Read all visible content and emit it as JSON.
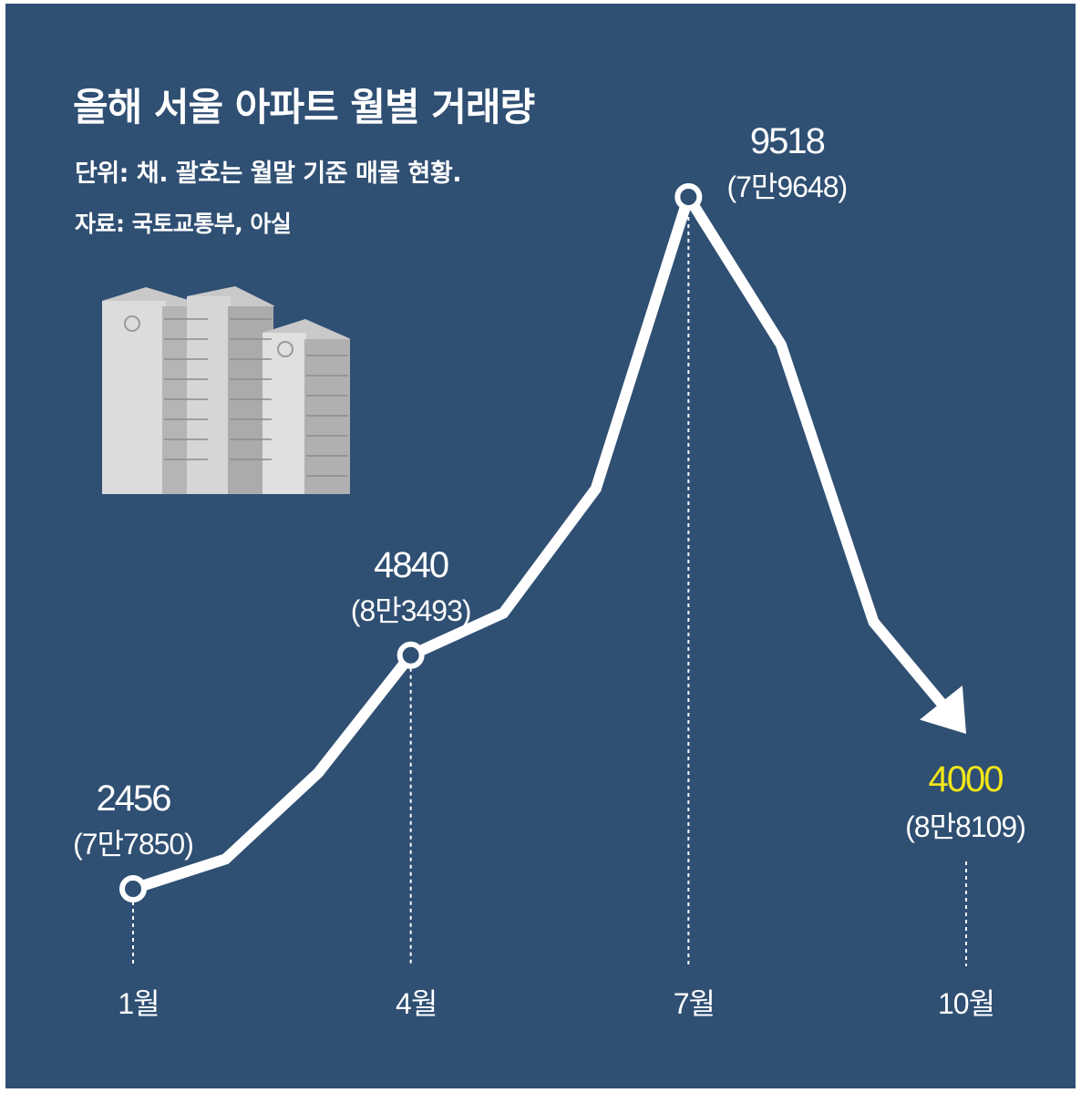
{
  "title": "올해 서울 아파트 월별 거래량",
  "subtitle": "단위: 채. 괄호는 월말 기준 매물 현황.",
  "source": "자료: 국토교통부, 아실",
  "colors": {
    "background": "#2f4f73",
    "line": "#ffffff",
    "highlight": "#f2e61a"
  },
  "chart_data": {
    "type": "line",
    "title": "올해 서울 아파트 월별 거래량",
    "xlabel": "",
    "ylabel": "",
    "x": [
      1,
      2,
      3,
      4,
      5,
      6,
      7,
      8,
      9,
      10
    ],
    "ylim": [
      0,
      10000
    ],
    "series": [
      {
        "values": [
          2456,
          2760,
          3640,
          4840,
          5270,
          6540,
          9518,
          8010,
          5180,
          4000
        ]
      }
    ],
    "labeled_points": [
      {
        "month": 1,
        "value": "2456",
        "secondary": "(7만7850)",
        "x_label": "1월",
        "highlight": false
      },
      {
        "month": 4,
        "value": "4840",
        "secondary": "(8만3493)",
        "x_label": "4월",
        "highlight": false
      },
      {
        "month": 7,
        "value": "9518",
        "secondary": "(7만9648)",
        "x_label": "7월",
        "highlight": false
      },
      {
        "month": 10,
        "value": "4000",
        "secondary": "(8만8109)",
        "x_label": "10월",
        "highlight": true
      }
    ],
    "grid": false,
    "legend": "none"
  }
}
